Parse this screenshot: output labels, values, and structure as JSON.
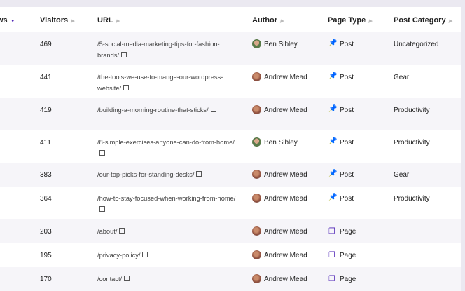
{
  "header": {
    "views": "ws",
    "visitors": "Visitors",
    "url": "URL",
    "author": "Author",
    "page_type": "Page Type",
    "post_category": "Post Category"
  },
  "colors": {
    "accent": "#4b1fb5"
  },
  "rows": [
    {
      "visitors": "469",
      "url": "/5-social-media-marketing-tips-for-fashion-brands/",
      "author": "Ben Sibley",
      "type": "Post",
      "type_icon": "pin-icon",
      "category": "Uncategorized"
    },
    {
      "visitors": "441",
      "url": "/the-tools-we-use-to-mange-our-wordpress-website/",
      "author": "Andrew Mead",
      "type": "Post",
      "type_icon": "pin-icon",
      "category": "Gear"
    },
    {
      "visitors": "419",
      "url": "/building-a-morning-routine-that-sticks/",
      "author": "Andrew Mead",
      "type": "Post",
      "type_icon": "pin-icon",
      "category": "Productivity"
    },
    {
      "visitors": "411",
      "url": "/8-simple-exercises-anyone-can-do-from-home/",
      "author": "Ben Sibley",
      "type": "Post",
      "type_icon": "pin-icon",
      "category": "Productivity"
    },
    {
      "visitors": "383",
      "url": "/our-top-picks-for-standing-desks/",
      "author": "Andrew Mead",
      "type": "Post",
      "type_icon": "pin-icon",
      "category": "Gear"
    },
    {
      "visitors": "364",
      "url": "/how-to-stay-focused-when-working-from-home/",
      "author": "Andrew Mead",
      "type": "Post",
      "type_icon": "pin-icon",
      "category": "Productivity"
    },
    {
      "visitors": "203",
      "url": "/about/",
      "author": "Andrew Mead",
      "type": "Page",
      "type_icon": "pages-icon",
      "category": ""
    },
    {
      "visitors": "195",
      "url": "/privacy-policy/",
      "author": "Andrew Mead",
      "type": "Page",
      "type_icon": "pages-icon",
      "category": ""
    },
    {
      "visitors": "170",
      "url": "/contact/",
      "author": "Andrew Mead",
      "type": "Page",
      "type_icon": "pages-icon",
      "category": ""
    }
  ]
}
